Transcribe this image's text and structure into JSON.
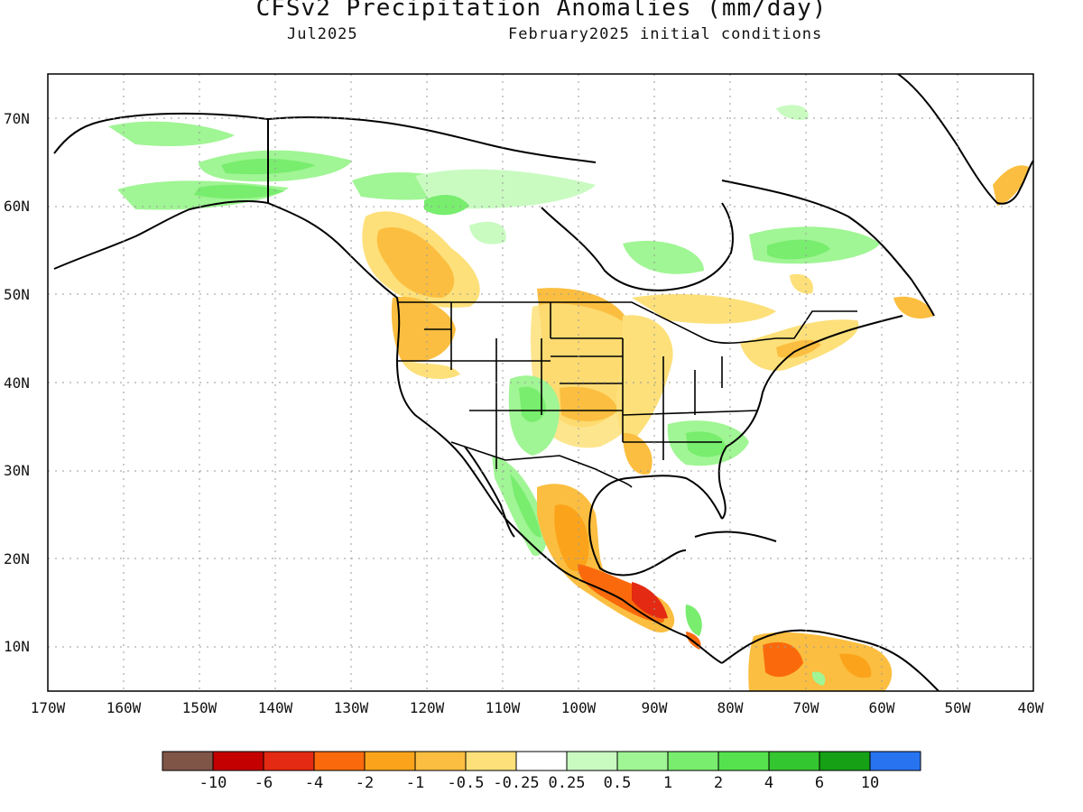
{
  "header": {
    "title": "CFSv2 Precipitation Anomalies (mm/day)",
    "valid_month": "Jul2025",
    "init_conditions": "February2025 initial conditions"
  },
  "map": {
    "lon_range": [
      -170,
      -40
    ],
    "lat_range": [
      5,
      75
    ],
    "lat_ticks": [
      "10N",
      "20N",
      "30N",
      "40N",
      "50N",
      "60N",
      "70N"
    ],
    "lon_ticks": [
      "170W",
      "160W",
      "150W",
      "140W",
      "130W",
      "120W",
      "110W",
      "100W",
      "90W",
      "80W",
      "70W",
      "60W",
      "50W",
      "40W"
    ],
    "grid": "dotted"
  },
  "colorbar": {
    "labels": [
      "-10",
      "-6",
      "-4",
      "-2",
      "-1",
      "-0.5",
      "-0.25",
      "0.25",
      "0.5",
      "1",
      "2",
      "4",
      "6",
      "10"
    ],
    "colors": [
      "#7f5548",
      "#c40000",
      "#e42a12",
      "#fa6a0c",
      "#fba41b",
      "#fbbe40",
      "#fde07a",
      "#ffffff",
      "#c9fbc1",
      "#a0f594",
      "#78ed6e",
      "#55e24e",
      "#34c630",
      "#15a016",
      "#2874f0"
    ]
  }
}
